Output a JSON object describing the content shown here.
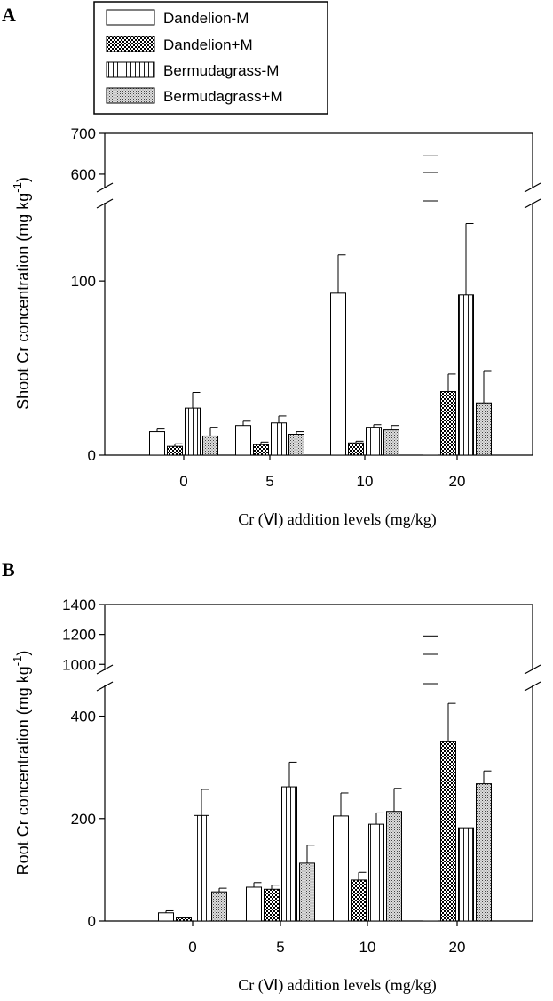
{
  "legend": {
    "entries": [
      "Dandelion-M",
      "Dandelion+M",
      "Bermudagrass-M",
      "Bermudagrass+M"
    ]
  },
  "chart_data": [
    {
      "panel_label": "A",
      "type": "bar",
      "ylabel": "Shoot Cr concentration (mg kg",
      "ylabel_exponent": "-1",
      "ylabel_close": ")",
      "xlabel": "Cr (Ⅵ) addition levels (mg/kg)",
      "categories": [
        "0",
        "5",
        "10",
        "20"
      ],
      "axis_break": true,
      "ylim_lower": [
        0,
        145
      ],
      "ylim_upper": [
        565,
        700
      ],
      "yticks_lower": [
        0,
        100
      ],
      "yticks_upper": [
        600,
        700
      ],
      "series": [
        {
          "name": "Dandelion-M",
          "values": [
            13.5,
            17,
            93,
            645
          ],
          "errors": [
            1.5,
            2.5,
            22,
            0
          ]
        },
        {
          "name": "Dandelion+M",
          "values": [
            5,
            6,
            7,
            36.5
          ],
          "errors": [
            1.5,
            1.5,
            1,
            10
          ]
        },
        {
          "name": "Bermudagrass-M",
          "values": [
            27,
            18.5,
            16,
            92
          ],
          "errors": [
            9,
            4,
            1.5,
            41
          ]
        },
        {
          "name": "Bermudagrass+M",
          "values": [
            11,
            12,
            14.5,
            30
          ],
          "errors": [
            5,
            1.5,
            2.5,
            18.5
          ]
        }
      ]
    },
    {
      "panel_label": "B",
      "type": "bar",
      "ylabel": "Root Cr concentration (mg kg",
      "ylabel_exponent": "-1",
      "ylabel_close": ")",
      "xlabel": "Cr (Ⅵ) addition levels (mg/kg)",
      "categories": [
        "0",
        "5",
        "10",
        "20"
      ],
      "axis_break": true,
      "ylim_lower": [
        0,
        460
      ],
      "ylim_upper": [
        960,
        1400
      ],
      "yticks_lower": [
        0,
        200,
        400
      ],
      "yticks_upper": [
        1000,
        1200,
        1400
      ],
      "series": [
        {
          "name": "Dandelion-M",
          "values": [
            16,
            66,
            205,
            1190
          ],
          "errors": [
            4,
            9,
            45,
            0
          ]
        },
        {
          "name": "Dandelion+M",
          "values": [
            6,
            62,
            80,
            350
          ],
          "errors": [
            1.5,
            8,
            15,
            75
          ]
        },
        {
          "name": "Bermudagrass-M",
          "values": [
            206,
            262,
            189,
            182
          ],
          "errors": [
            51,
            48,
            22,
            0
          ]
        },
        {
          "name": "Bermudagrass+M",
          "values": [
            57,
            113,
            214,
            268
          ],
          "errors": [
            7,
            35,
            45,
            25
          ]
        }
      ]
    }
  ]
}
